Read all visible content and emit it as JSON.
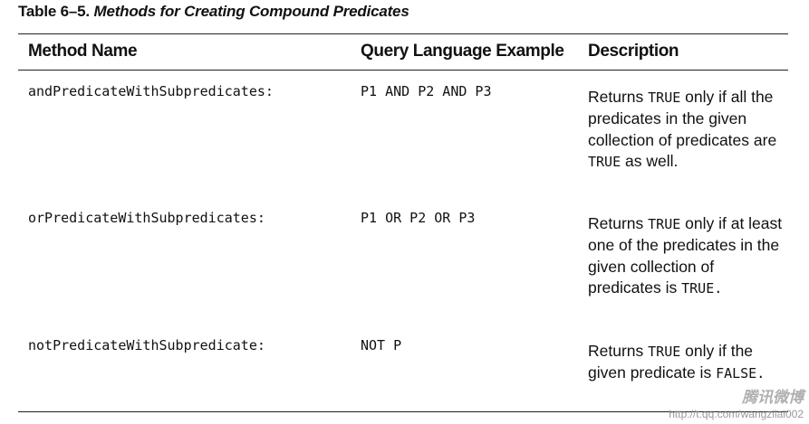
{
  "caption": {
    "label": "Table 6–5.",
    "title": "Methods for Creating Compound Predicates"
  },
  "table": {
    "headers": [
      "Method Name",
      "Query Language Example",
      "Description"
    ],
    "rows": [
      {
        "method": "andPredicateWithSubpredicates:",
        "query": "P1 AND P2 AND P3",
        "desc": {
          "p1": "Returns ",
          "m1": "TRUE",
          "p2": " only if all the predicates in the given collection of predicates are ",
          "m2": "TRUE",
          "p3": " as well."
        }
      },
      {
        "method": "orPredicateWithSubpredicates:",
        "query": "P1 OR P2 OR P3",
        "desc": {
          "p1": "Returns ",
          "m1": "TRUE",
          "p2": " only if at least one of the predicates in the given collection of predicates is ",
          "m2": "TRUE.",
          "p3": ""
        }
      },
      {
        "method": "notPredicateWithSubpredicate:",
        "query": "NOT P",
        "desc": {
          "p1": "Returns ",
          "m1": "TRUE",
          "p2": " only if the given predicate is ",
          "m2": "FALSE.",
          "p3": ""
        }
      }
    ]
  },
  "watermark": {
    "logo": "腾讯微博",
    "url": "http://t.qq.com/wangzilai002"
  }
}
